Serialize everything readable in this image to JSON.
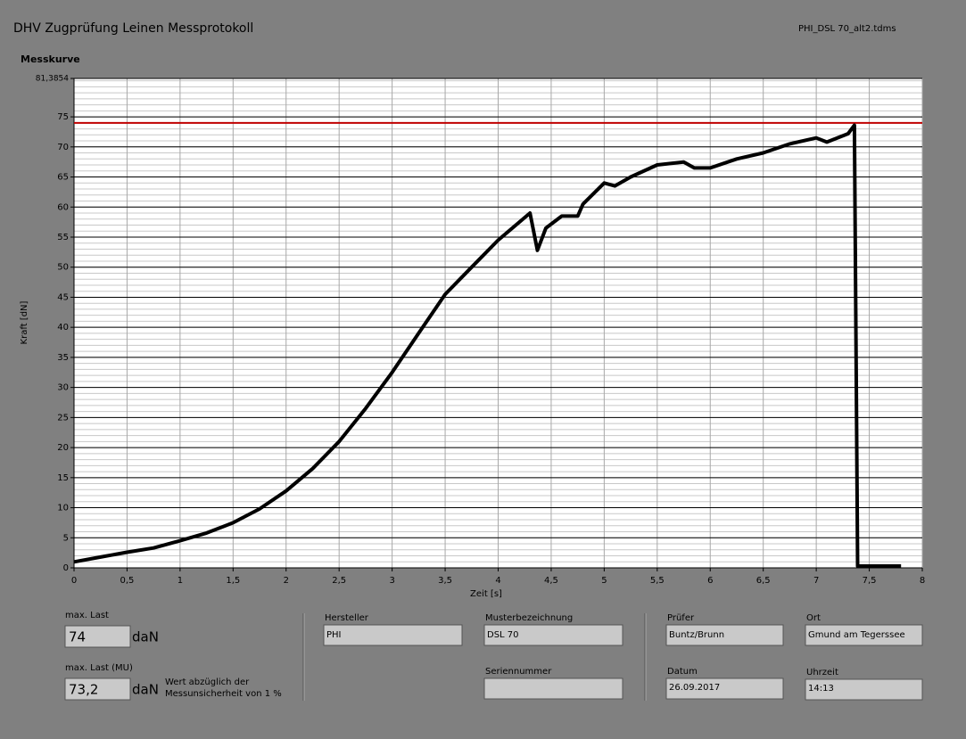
{
  "header": {
    "title": "DHV Zugprüfung Leinen Messprotokoll",
    "file": "PHI_DSL 70_alt2.tdms"
  },
  "chart_data": {
    "type": "line",
    "title": "Messkurve",
    "x_label": "Zeit [s]",
    "y_label": "Kraft [dN]",
    "x": [
      0,
      0.25,
      0.5,
      0.75,
      1.0,
      1.25,
      1.5,
      1.75,
      2.0,
      2.25,
      2.5,
      2.75,
      3.0,
      3.25,
      3.5,
      3.75,
      4.0,
      4.2,
      4.3,
      4.37,
      4.45,
      4.6,
      4.75,
      4.8,
      5.0,
      5.1,
      5.25,
      5.5,
      5.75,
      5.85,
      6.0,
      6.25,
      6.5,
      6.75,
      7.0,
      7.1,
      7.3,
      7.36,
      7.39,
      7.8
    ],
    "series": [
      {
        "color": "#000000",
        "values": [
          1.0,
          1.8,
          2.6,
          3.3,
          4.5,
          5.8,
          7.5,
          9.8,
          12.8,
          16.5,
          21,
          26.5,
          32.5,
          39,
          45.5,
          50,
          54.5,
          57.5,
          59,
          52.8,
          56.5,
          58.5,
          58.5,
          60.5,
          64,
          63.5,
          65,
          67,
          67.5,
          66.5,
          66.5,
          68,
          69,
          70.5,
          71.5,
          70.8,
          72.2,
          73.6,
          0.3,
          0.3
        ]
      }
    ],
    "reference_lines": [
      {
        "value": 74,
        "color": "#c00000"
      }
    ],
    "xlim": [
      0,
      8
    ],
    "ylim": [
      0,
      81.3854
    ],
    "xticks": [
      0,
      {
        "value": 0.5,
        "label": "0,5"
      },
      1,
      {
        "value": 1.5,
        "label": "1,5"
      },
      2,
      {
        "value": 2.5,
        "label": "2,5"
      },
      3,
      {
        "value": 3.5,
        "label": "3,5"
      },
      4,
      {
        "value": 4.5,
        "label": "4,5"
      },
      5,
      {
        "value": 5.5,
        "label": "5,5"
      },
      6,
      {
        "value": 6.5,
        "label": "6,5"
      },
      7,
      {
        "value": 7.5,
        "label": "7,5"
      },
      8
    ],
    "yticks": [
      0,
      5,
      10,
      15,
      20,
      25,
      30,
      35,
      40,
      45,
      50,
      55,
      60,
      65,
      70,
      75,
      {
        "value": 81.3854,
        "label": "81,3854"
      }
    ],
    "grid": true
  },
  "fields": {
    "max_last": {
      "label": "max. Last",
      "value": "74",
      "unit": "daN"
    },
    "max_last_mu": {
      "label": "max. Last (MU)",
      "value": "73,2",
      "unit": "daN",
      "note": [
        "Wert abzüglich der",
        "Messunsicherheit von 1 %"
      ]
    },
    "hersteller": {
      "label": "Hersteller",
      "value": "PHI"
    },
    "musterbezeichnung": {
      "label": "Musterbezeichnung",
      "value": "DSL 70"
    },
    "seriennummer": {
      "label": "Seriennummer"
    },
    "pruefer": {
      "label": "Prüfer",
      "value": "Buntz/Brunn"
    },
    "ort": {
      "label": "Ort",
      "value": "Gmund am Tegerssee"
    },
    "datum": {
      "label": "Datum",
      "value": "26.09.2017"
    },
    "uhrzeit": {
      "label": "Uhrzeit",
      "value": "14:13"
    }
  }
}
